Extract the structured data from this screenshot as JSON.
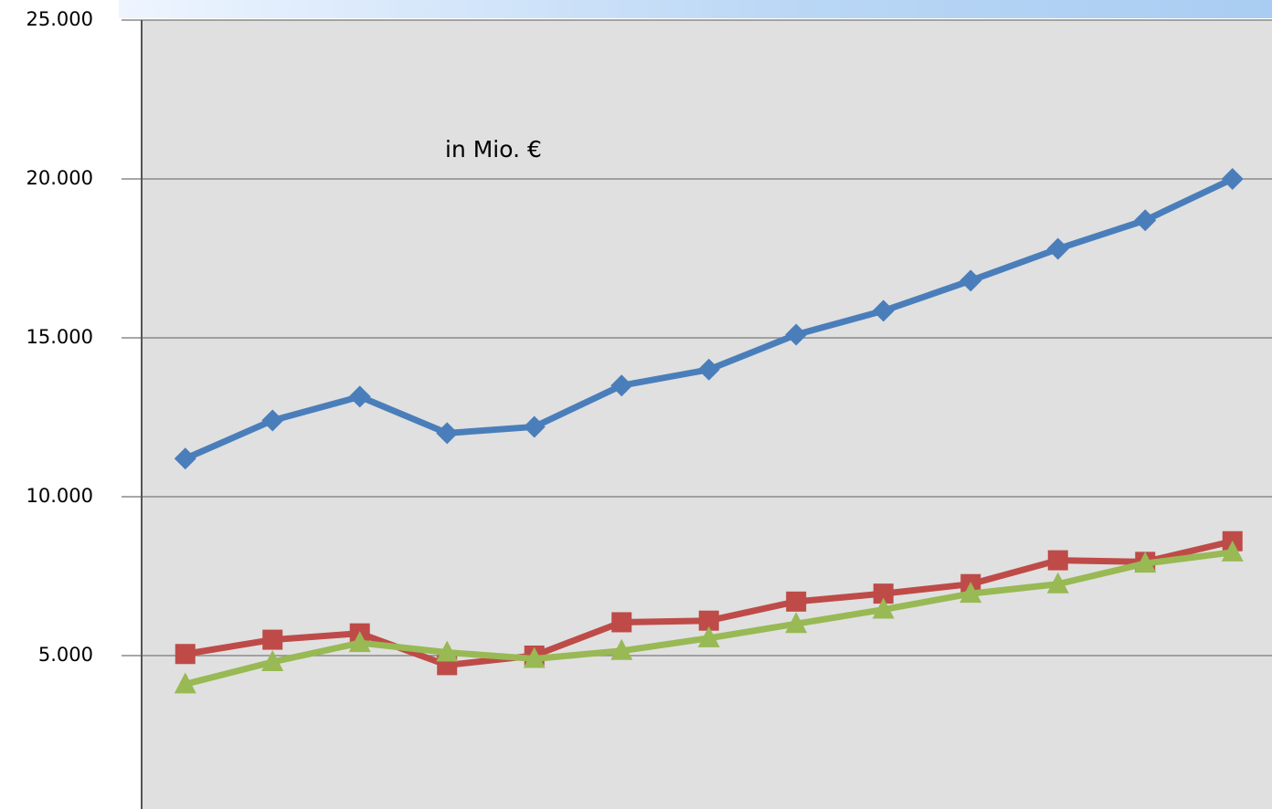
{
  "chart_data": {
    "type": "line",
    "annotation": "in Mio. €",
    "categories": [
      null,
      null,
      null,
      null,
      null,
      null,
      null,
      null,
      null,
      null,
      null,
      null,
      null
    ],
    "series": [
      {
        "color": "#4a7ebb",
        "marker": "diamond",
        "values": [
          11200,
          12400,
          13150,
          12000,
          12200,
          13500,
          14000,
          15100,
          15850,
          16800,
          17800,
          18700,
          20000
        ]
      },
      {
        "color": "#be4b48",
        "marker": "square",
        "values": [
          5050,
          5500,
          5700,
          4700,
          5000,
          6050,
          6100,
          6700,
          6950,
          7250,
          8000,
          7950,
          8600
        ]
      },
      {
        "color": "#98b954",
        "marker": "triangle",
        "values": [
          4100,
          4800,
          5400,
          5100,
          4900,
          5150,
          5550,
          6000,
          6450,
          6950,
          7250,
          7900,
          8250
        ]
      }
    ],
    "ylim": [
      0,
      25000
    ],
    "yticks": [
      {
        "value": 5000,
        "label": "5.000"
      },
      {
        "value": 10000,
        "label": "10.000"
      },
      {
        "value": 15000,
        "label": "15.000"
      },
      {
        "value": 20000,
        "label": "20.000"
      },
      {
        "value": 25000,
        "label": "25.000"
      }
    ],
    "grid": true
  }
}
